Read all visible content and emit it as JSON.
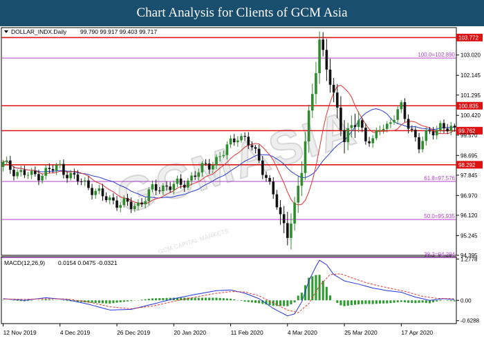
{
  "header": {
    "title": "Chart Analysis for Clients of GCM Asia"
  },
  "watermark": {
    "text": "GCMASIA",
    "sub": "GCM CAPITAL MARKETS",
    "color": "#e3e3e3"
  },
  "colors": {
    "bull": "#2e8b2e",
    "bear": "#111111",
    "ma_fast": "#e53030",
    "ma_slow": "#2a3bd8",
    "resistance": "#dd1111",
    "fib": "#b040c8",
    "macd_line": "#2233dd",
    "macd_signal": "#e53030",
    "histogram": "#2f9a2f"
  },
  "chart_data": [
    {
      "type": "candlestick",
      "title": "DOLLAR_INDX.Daily",
      "ohlc_readout": "99.790 99.917 99.403 99.717",
      "ylim": [
        94.395,
        104.2
      ],
      "y_ticks": [
        "103.020",
        "102.145",
        "101.295",
        "100.420",
        "99.570",
        "98.695",
        "97.845",
        "96.970",
        "96.120",
        "95.245",
        "94.395"
      ],
      "x_ticks": [
        "12 Nov 2019",
        "4 Dec 2019",
        "26 Dec 2019",
        "20 Jan 2020",
        "11 Feb 2020",
        "4 Mar 2020",
        "25 Mar 2020",
        "17 Apr 2020"
      ],
      "x_tick_index": [
        0,
        16,
        32,
        48,
        64,
        80,
        96,
        112
      ],
      "n_bars": 128,
      "close_anchors": [
        [
          0,
          98.3
        ],
        [
          4,
          98.0
        ],
        [
          8,
          97.8
        ],
        [
          12,
          98.0
        ],
        [
          16,
          98.2
        ],
        [
          20,
          97.7
        ],
        [
          24,
          97.4
        ],
        [
          28,
          96.9
        ],
        [
          32,
          96.7
        ],
        [
          36,
          96.5
        ],
        [
          38,
          96.6
        ],
        [
          42,
          97.2
        ],
        [
          46,
          97.4
        ],
        [
          50,
          97.4
        ],
        [
          54,
          97.9
        ],
        [
          58,
          98.3
        ],
        [
          62,
          98.8
        ],
        [
          64,
          99.2
        ],
        [
          66,
          99.6
        ],
        [
          68,
          99.4
        ],
        [
          70,
          99.0
        ],
        [
          72,
          98.5
        ],
        [
          74,
          97.8
        ],
        [
          76,
          97.0
        ],
        [
          78,
          96.0
        ],
        [
          80,
          95.4
        ],
        [
          82,
          96.5
        ],
        [
          84,
          98.0
        ],
        [
          86,
          100.5
        ],
        [
          88,
          102.5
        ],
        [
          89,
          103.6
        ],
        [
          90,
          103.0
        ],
        [
          92,
          101.8
        ],
        [
          94,
          100.8
        ],
        [
          96,
          99.3
        ],
        [
          98,
          99.9
        ],
        [
          100,
          100.2
        ],
        [
          102,
          99.5
        ],
        [
          104,
          99.2
        ],
        [
          106,
          99.9
        ],
        [
          108,
          100.0
        ],
        [
          110,
          100.4
        ],
        [
          112,
          100.7
        ],
        [
          113,
          100.3
        ],
        [
          115,
          99.8
        ],
        [
          117,
          99.1
        ],
        [
          119,
          99.5
        ],
        [
          121,
          99.8
        ],
        [
          123,
          100.0
        ],
        [
          125,
          99.8
        ],
        [
          127,
          99.72
        ]
      ],
      "level_lines": [
        {
          "label": "103.772",
          "value": 103.772,
          "kind": "resistance"
        },
        {
          "label": "100.835",
          "value": 100.835,
          "kind": "resistance"
        },
        {
          "label": "99.762",
          "value": 99.762,
          "kind": "resistance"
        },
        {
          "label": "98.292",
          "value": 98.292,
          "kind": "resistance"
        }
      ],
      "fib_lines": [
        {
          "label": "100.0=102.890",
          "value": 102.89
        },
        {
          "label": "61.8=97.576",
          "value": 97.576
        },
        {
          "label": "50.0=95.935",
          "value": 95.935
        },
        {
          "label": "38.2=94.294",
          "value": 94.294
        }
      ]
    },
    {
      "type": "macd",
      "title": "MACD(12,26,9)",
      "readout": "0.0154 0.0475 -0.0321",
      "ylim": [
        -0.72,
        1.35
      ],
      "y_ticks": [
        "1.2778",
        "0.00",
        "-0.6288"
      ],
      "macd_anchors": [
        [
          0,
          0.05
        ],
        [
          6,
          0.0
        ],
        [
          12,
          0.08
        ],
        [
          18,
          0.02
        ],
        [
          24,
          -0.12
        ],
        [
          30,
          -0.3
        ],
        [
          36,
          -0.28
        ],
        [
          42,
          -0.12
        ],
        [
          48,
          0.05
        ],
        [
          54,
          0.18
        ],
        [
          60,
          0.3
        ],
        [
          64,
          0.32
        ],
        [
          68,
          0.22
        ],
        [
          72,
          0.05
        ],
        [
          76,
          -0.25
        ],
        [
          80,
          -0.48
        ],
        [
          82,
          -0.42
        ],
        [
          84,
          -0.05
        ],
        [
          86,
          0.6
        ],
        [
          88,
          1.05
        ],
        [
          89,
          1.24
        ],
        [
          91,
          1.1
        ],
        [
          93,
          0.8
        ],
        [
          96,
          0.6
        ],
        [
          100,
          0.5
        ],
        [
          104,
          0.38
        ],
        [
          108,
          0.3
        ],
        [
          112,
          0.25
        ],
        [
          116,
          0.1
        ],
        [
          120,
          0.0
        ],
        [
          124,
          0.05
        ],
        [
          127,
          0.02
        ]
      ],
      "signal_anchors": [
        [
          0,
          0.04
        ],
        [
          6,
          0.03
        ],
        [
          12,
          0.05
        ],
        [
          18,
          0.04
        ],
        [
          24,
          -0.05
        ],
        [
          30,
          -0.2
        ],
        [
          36,
          -0.26
        ],
        [
          42,
          -0.18
        ],
        [
          48,
          -0.03
        ],
        [
          54,
          0.1
        ],
        [
          60,
          0.22
        ],
        [
          64,
          0.27
        ],
        [
          68,
          0.26
        ],
        [
          72,
          0.14
        ],
        [
          76,
          -0.08
        ],
        [
          80,
          -0.3
        ],
        [
          83,
          -0.38
        ],
        [
          86,
          -0.1
        ],
        [
          89,
          0.45
        ],
        [
          92,
          0.8
        ],
        [
          95,
          0.82
        ],
        [
          98,
          0.7
        ],
        [
          102,
          0.55
        ],
        [
          106,
          0.44
        ],
        [
          110,
          0.35
        ],
        [
          114,
          0.25
        ],
        [
          118,
          0.12
        ],
        [
          122,
          0.06
        ],
        [
          127,
          0.05
        ]
      ]
    }
  ]
}
